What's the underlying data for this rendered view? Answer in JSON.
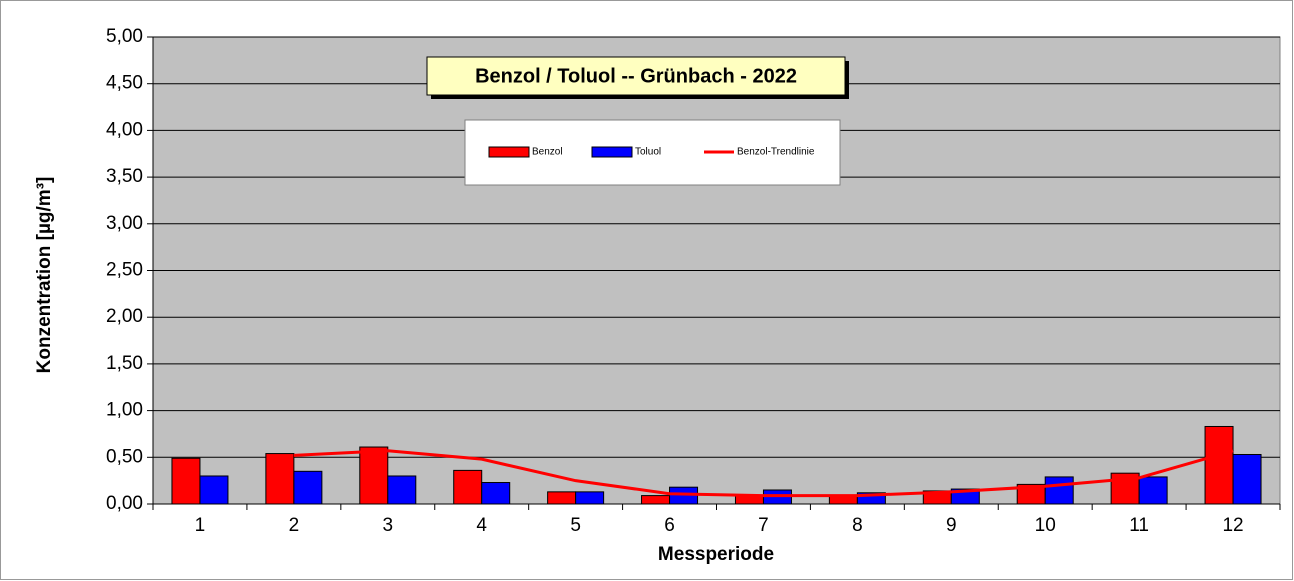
{
  "chart_data": {
    "type": "bar",
    "title": "Benzol / Toluol -- Grünbach - 2022",
    "x_label": "Messperiode",
    "y_label": "Konzentration [µg/m³]",
    "categories": [
      "1",
      "2",
      "3",
      "4",
      "5",
      "6",
      "7",
      "8",
      "9",
      "10",
      "11",
      "12"
    ],
    "series": [
      {
        "name": "Benzol",
        "color": "#ff0000",
        "type": "bar",
        "values": [
          0.49,
          0.54,
          0.61,
          0.36,
          0.13,
          0.09,
          0.09,
          0.09,
          0.14,
          0.21,
          0.33,
          0.83
        ]
      },
      {
        "name": "Toluol",
        "color": "#0000ff",
        "type": "bar",
        "values": [
          0.3,
          0.35,
          0.3,
          0.23,
          0.13,
          0.18,
          0.15,
          0.12,
          0.16,
          0.29,
          0.29,
          0.53
        ]
      },
      {
        "name": "Benzol-Trendlinie",
        "color": "#ff0000",
        "type": "line",
        "values": [
          null,
          0.52,
          0.57,
          0.48,
          0.25,
          0.11,
          0.09,
          0.09,
          0.13,
          0.19,
          0.28,
          0.57
        ]
      }
    ],
    "ylim": [
      0,
      5
    ],
    "yticks": [
      {
        "value": 0,
        "label": "0,00"
      },
      {
        "value": 0.5,
        "label": "0,50"
      },
      {
        "value": 1,
        "label": "1,00"
      },
      {
        "value": 1.5,
        "label": "1,50"
      },
      {
        "value": 2,
        "label": "2,00"
      },
      {
        "value": 2.5,
        "label": "2,50"
      },
      {
        "value": 3,
        "label": "3,00"
      },
      {
        "value": 3.5,
        "label": "3,50"
      },
      {
        "value": 4,
        "label": "4,00"
      },
      {
        "value": 4.5,
        "label": "4,50"
      },
      {
        "value": 5,
        "label": "5,00"
      }
    ],
    "grid": true
  }
}
